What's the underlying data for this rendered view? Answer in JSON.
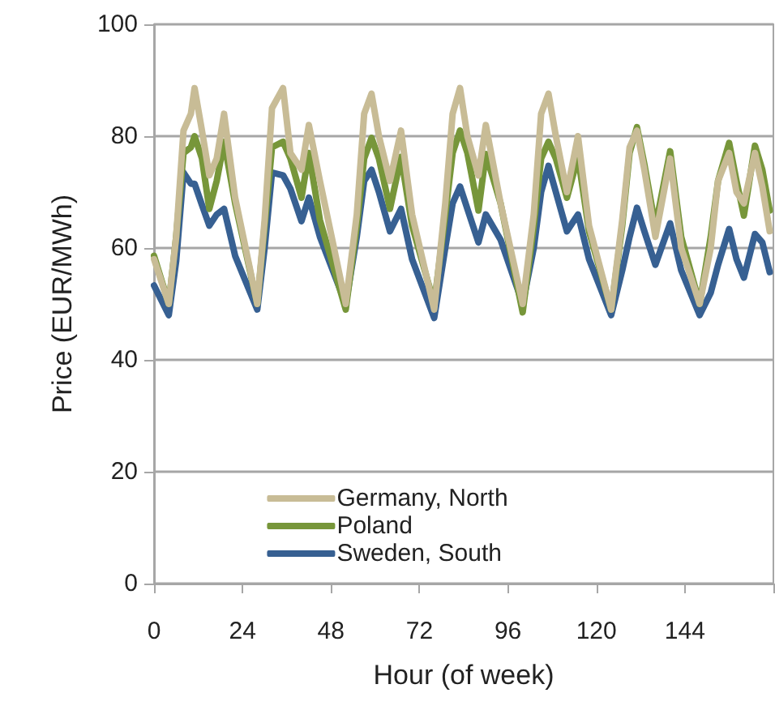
{
  "chart_data": {
    "type": "line",
    "xlabel": "Hour (of week)",
    "ylabel": "Price (EUR/MWh)",
    "x": [
      0,
      4,
      6,
      8,
      10,
      11,
      13,
      15,
      17,
      19,
      22,
      28,
      30,
      32,
      35,
      37,
      40,
      42,
      45,
      52,
      55,
      57,
      59,
      61,
      64,
      67,
      70,
      76,
      79,
      81,
      83,
      85,
      88,
      90,
      94,
      100,
      103,
      105,
      107,
      109,
      112,
      115,
      118,
      124,
      127,
      129,
      131,
      133,
      136,
      140,
      143,
      148,
      151,
      153,
      156,
      158,
      160,
      163,
      165,
      167
    ],
    "series": [
      {
        "name": "Germany, North",
        "color": "#c8bc96",
        "values": [
          58,
          50,
          62,
          81,
          84,
          88.6,
          81,
          73,
          76,
          84,
          69,
          50,
          65,
          85,
          88.6,
          77,
          74,
          82,
          72,
          50,
          66,
          84,
          87.6,
          80,
          72,
          81,
          66,
          49,
          68,
          84,
          88.6,
          80,
          73,
          82,
          68,
          50,
          66,
          84,
          87.6,
          80,
          70,
          80,
          64,
          49,
          65,
          78,
          81,
          74,
          62,
          76,
          60,
          50,
          60,
          72,
          77,
          70,
          68,
          77,
          71,
          63
        ]
      },
      {
        "name": "Poland",
        "color": "#77963a",
        "values": [
          58.6,
          50,
          62,
          77,
          78,
          80,
          76,
          67,
          72,
          79,
          68,
          50,
          64,
          78,
          79,
          76,
          69,
          77,
          65,
          49,
          64,
          76,
          79.7,
          76,
          67,
          76.3,
          64,
          50,
          66,
          77,
          81,
          77,
          66.7,
          76.8,
          68,
          48.5,
          64,
          76,
          79,
          76,
          69,
          76.3,
          63,
          49,
          64,
          77,
          81.6,
          75,
          63.8,
          77.3,
          62,
          50,
          62,
          72,
          78.8,
          72,
          65.8,
          78.3,
          74,
          66.7
        ]
      },
      {
        "name": "Sweden, South",
        "color": "#376092",
        "values": [
          53.3,
          48,
          57.6,
          73.5,
          71.5,
          71.5,
          67.7,
          64,
          66,
          67,
          58.6,
          49,
          60,
          73.5,
          73,
          70.6,
          64.8,
          69,
          62,
          50,
          62,
          72,
          74,
          70,
          63,
          67,
          58,
          47.5,
          60,
          68,
          71,
          67,
          61,
          66,
          61.5,
          50,
          60,
          70,
          74.7,
          70,
          63,
          66,
          58,
          48,
          56,
          62,
          67.2,
          63,
          57,
          64.4,
          56,
          48,
          52,
          57,
          63.4,
          58,
          54.7,
          62.5,
          61,
          55.7
        ]
      }
    ],
    "xlim": [
      0,
      168
    ],
    "xticks": [
      0,
      24,
      48,
      72,
      96,
      120,
      144,
      {
        "value": 168,
        "label": null
      }
    ],
    "ylim": [
      0,
      100
    ],
    "yticks": [
      0,
      20,
      40,
      60,
      80,
      100
    ],
    "grid": "y",
    "legend": "bottom",
    "marker": "none",
    "line_style": "solid"
  }
}
